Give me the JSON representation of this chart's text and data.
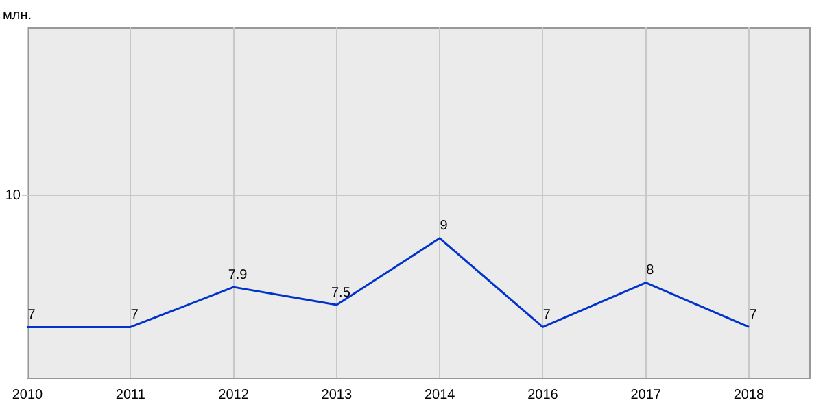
{
  "chart_data": {
    "type": "line",
    "ylabel": "млн.",
    "categories": [
      "2010",
      "2011",
      "2012",
      "2013",
      "2014",
      "2016",
      "2017",
      "2018"
    ],
    "series": [
      {
        "color": "#0033cc",
        "values": [
          7,
          7,
          7.9,
          7.5,
          9,
          7,
          8,
          7
        ]
      }
    ],
    "ylim": [
      5.85,
      13.75
    ],
    "ref_lines": [
      {
        "axis": "y",
        "value": 10,
        "label": "10",
        "color": "#c8c8c8"
      }
    ],
    "grid": "x",
    "legend": false,
    "marker": "none",
    "data_labels": true
  }
}
